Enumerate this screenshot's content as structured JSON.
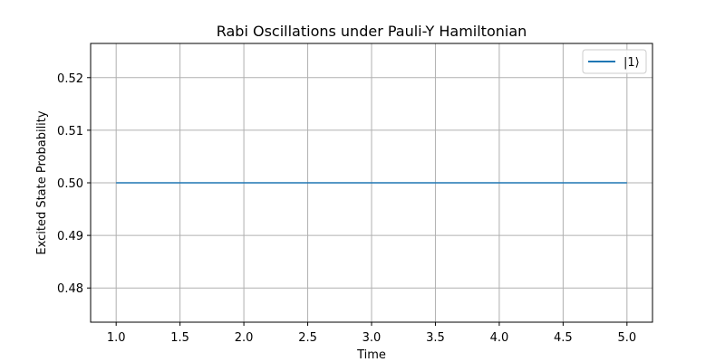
{
  "chart_data": {
    "type": "line",
    "title": "Rabi Oscillations under Pauli-Y Hamiltonian",
    "xlabel": "Time",
    "ylabel": "Excited State Probability",
    "xlim": [
      0.8,
      5.2
    ],
    "ylim": [
      0.4735,
      0.5265
    ],
    "xticks": [
      1.0,
      1.5,
      2.0,
      2.5,
      3.0,
      3.5,
      4.0,
      4.5,
      5.0
    ],
    "xtick_labels": [
      "1.0",
      "1.5",
      "2.0",
      "2.5",
      "3.0",
      "3.5",
      "4.0",
      "4.5",
      "5.0"
    ],
    "yticks": [
      0.48,
      0.49,
      0.5,
      0.51,
      0.52
    ],
    "ytick_labels": [
      "0.48",
      "0.49",
      "0.50",
      "0.51",
      "0.52"
    ],
    "grid": true,
    "legend_position": "top-right",
    "series": [
      {
        "name": "|1⟩",
        "color": "#1f77b4",
        "x": [
          1.0,
          1.5,
          2.0,
          2.5,
          3.0,
          3.5,
          4.0,
          4.5,
          5.0
        ],
        "y": [
          0.5,
          0.5,
          0.5,
          0.5,
          0.5,
          0.5,
          0.5,
          0.5,
          0.5
        ]
      }
    ]
  }
}
